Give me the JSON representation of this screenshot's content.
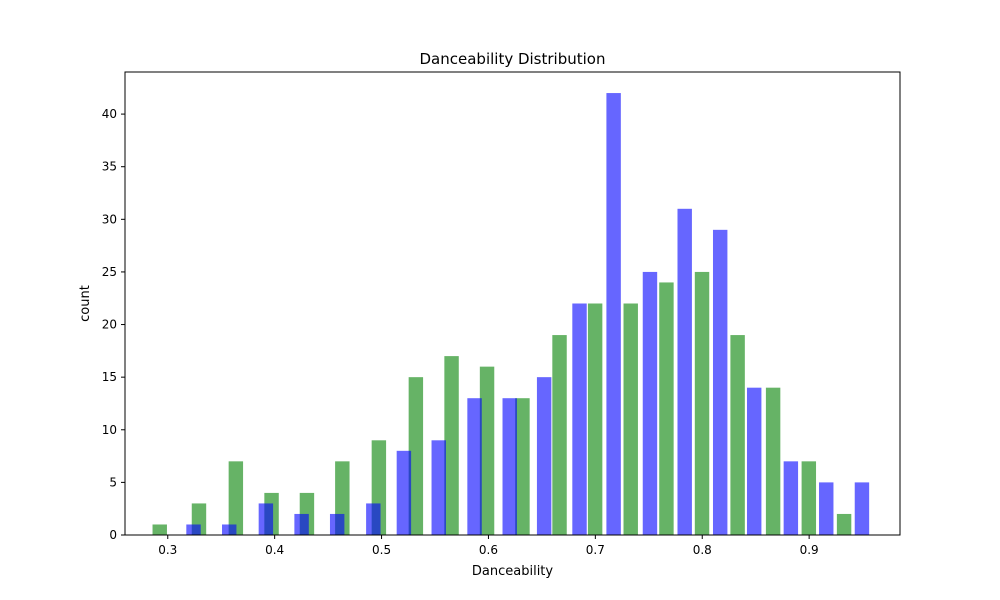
{
  "chart_data": {
    "type": "bar",
    "title": "Danceability Distribution",
    "xlabel": "Danceability",
    "ylabel": "count",
    "xlim": [
      0.26,
      0.985
    ],
    "ylim": [
      0,
      44
    ],
    "xticks": [
      0.3,
      0.4,
      0.5,
      0.6,
      0.7,
      0.8,
      0.9
    ],
    "yticks": [
      0,
      5,
      10,
      15,
      20,
      25,
      30,
      35,
      40
    ],
    "grid": false,
    "legend": "none",
    "bar_width": 0.0135,
    "series": [
      {
        "color": "#008000",
        "opacity": 0.6,
        "points": [
          {
            "x": 0.2925,
            "y": 1
          },
          {
            "x": 0.3292,
            "y": 3
          },
          {
            "x": 0.3637,
            "y": 7
          },
          {
            "x": 0.3971,
            "y": 4
          },
          {
            "x": 0.4302,
            "y": 4
          },
          {
            "x": 0.4633,
            "y": 7
          },
          {
            "x": 0.4975,
            "y": 9
          },
          {
            "x": 0.5321,
            "y": 15
          },
          {
            "x": 0.5655,
            "y": 17
          },
          {
            "x": 0.5987,
            "y": 16
          },
          {
            "x": 0.6318,
            "y": 13
          },
          {
            "x": 0.6665,
            "y": 19
          },
          {
            "x": 0.6998,
            "y": 22
          },
          {
            "x": 0.7331,
            "y": 22
          },
          {
            "x": 0.7665,
            "y": 24
          },
          {
            "x": 0.7998,
            "y": 25
          },
          {
            "x": 0.8331,
            "y": 19
          },
          {
            "x": 0.8663,
            "y": 14
          },
          {
            "x": 0.8997,
            "y": 7
          },
          {
            "x": 0.9327,
            "y": 2
          }
        ]
      },
      {
        "color": "#0000ff",
        "opacity": 0.6,
        "points": [
          {
            "x": 0.3241,
            "y": 1
          },
          {
            "x": 0.3575,
            "y": 1
          },
          {
            "x": 0.3918,
            "y": 3
          },
          {
            "x": 0.4252,
            "y": 2
          },
          {
            "x": 0.4585,
            "y": 2
          },
          {
            "x": 0.4923,
            "y": 3
          },
          {
            "x": 0.5209,
            "y": 8
          },
          {
            "x": 0.5535,
            "y": 9
          },
          {
            "x": 0.587,
            "y": 13
          },
          {
            "x": 0.6199,
            "y": 13
          },
          {
            "x": 0.6521,
            "y": 15
          },
          {
            "x": 0.6852,
            "y": 22
          },
          {
            "x": 0.7171,
            "y": 42
          },
          {
            "x": 0.7511,
            "y": 25
          },
          {
            "x": 0.7836,
            "y": 31
          },
          {
            "x": 0.8168,
            "y": 29
          },
          {
            "x": 0.8486,
            "y": 14
          },
          {
            "x": 0.8829,
            "y": 7
          },
          {
            "x": 0.916,
            "y": 5
          },
          {
            "x": 0.9494,
            "y": 5
          }
        ]
      }
    ]
  }
}
